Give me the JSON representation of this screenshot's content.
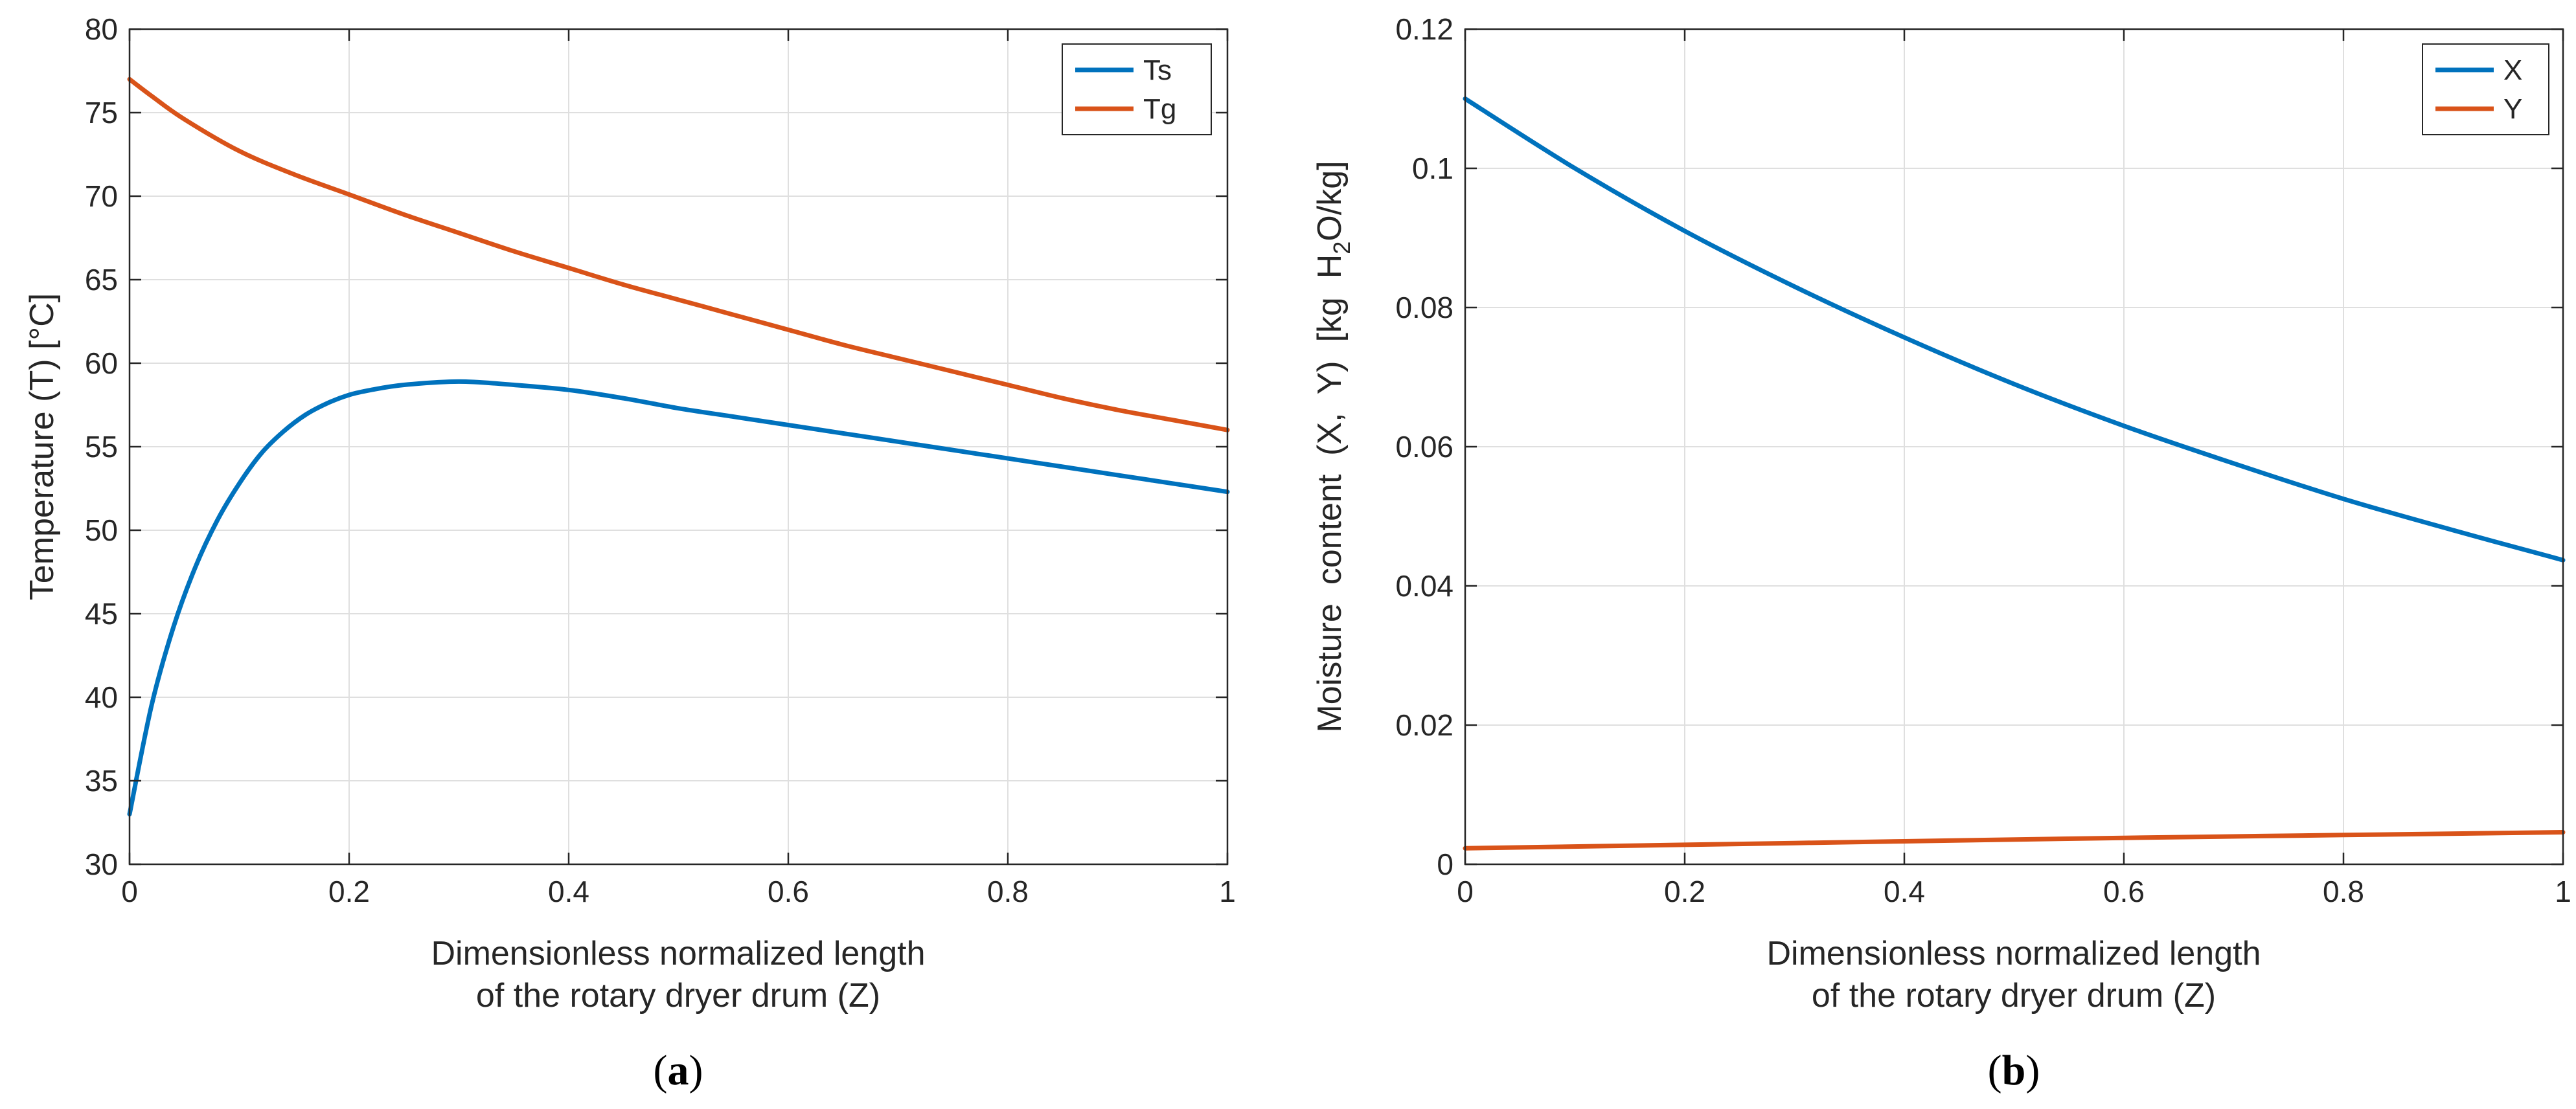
{
  "chart_data": [
    {
      "type": "line",
      "panel_label": "a",
      "xlabel_lines": [
        "Dimensionless normalized length",
        "of the rotary dryer drum (Z)"
      ],
      "ylabel": "Temperature (T) [°C]",
      "xlim": [
        0,
        1
      ],
      "ylim": [
        30,
        80
      ],
      "xticks": [
        0,
        0.2,
        0.4,
        0.6,
        0.8,
        1
      ],
      "xtick_labels": [
        "0",
        "0.2",
        "0.4",
        "0.6",
        "0.8",
        "1"
      ],
      "yticks": [
        30,
        35,
        40,
        45,
        50,
        55,
        60,
        65,
        70,
        75,
        80
      ],
      "ytick_labels": [
        "30",
        "35",
        "40",
        "45",
        "50",
        "55",
        "60",
        "65",
        "70",
        "75",
        "80"
      ],
      "grid": true,
      "legend_position": "top-right",
      "series": [
        {
          "name": "Ts",
          "color": "#0072BD",
          "x": [
            0,
            0.02,
            0.04,
            0.06,
            0.08,
            0.1,
            0.12,
            0.14,
            0.16,
            0.18,
            0.2,
            0.22,
            0.25,
            0.3,
            0.35,
            0.4,
            0.45,
            0.5,
            0.55,
            0.6,
            0.65,
            0.7,
            0.75,
            0.8,
            0.85,
            0.9,
            0.95,
            1
          ],
          "values": [
            33,
            39.5,
            44.2,
            47.8,
            50.6,
            52.8,
            54.6,
            55.9,
            56.9,
            57.6,
            58.1,
            58.4,
            58.7,
            58.9,
            58.7,
            58.4,
            57.9,
            57.3,
            56.8,
            56.3,
            55.8,
            55.3,
            54.8,
            54.3,
            53.8,
            53.3,
            52.8,
            52.3
          ]
        },
        {
          "name": "Tg",
          "color": "#D95319",
          "x": [
            0,
            0.02,
            0.05,
            0.1,
            0.15,
            0.2,
            0.25,
            0.3,
            0.35,
            0.4,
            0.45,
            0.5,
            0.55,
            0.6,
            0.65,
            0.7,
            0.75,
            0.8,
            0.85,
            0.9,
            0.95,
            1
          ],
          "values": [
            77,
            76,
            74.6,
            72.7,
            71.3,
            70.1,
            68.9,
            67.8,
            66.7,
            65.7,
            64.7,
            63.8,
            62.9,
            62,
            61.1,
            60.3,
            59.5,
            58.7,
            57.9,
            57.2,
            56.6,
            56
          ]
        }
      ]
    },
    {
      "type": "line",
      "panel_label": "b",
      "xlabel_lines": [
        "Dimensionless normalized length",
        "of the rotary dryer drum (Z)"
      ],
      "ylabel_parts": [
        "Moisture  content  (X,  Y)  [kg  H",
        "2",
        "O/kg]"
      ],
      "xlim": [
        0,
        1
      ],
      "ylim": [
        0,
        0.12
      ],
      "xticks": [
        0,
        0.2,
        0.4,
        0.6,
        0.8,
        1
      ],
      "xtick_labels": [
        "0",
        "0.2",
        "0.4",
        "0.6",
        "0.8",
        "1"
      ],
      "yticks": [
        0,
        0.02,
        0.04,
        0.06,
        0.08,
        0.1,
        0.12
      ],
      "ytick_labels": [
        "0",
        "0.02",
        "0.04",
        "0.06",
        "0.08",
        "0.1",
        "0.12"
      ],
      "grid": true,
      "legend_position": "top-right",
      "series": [
        {
          "name": "X",
          "color": "#0072BD",
          "x": [
            0,
            0.1,
            0.2,
            0.3,
            0.4,
            0.5,
            0.6,
            0.7,
            0.8,
            0.9,
            1
          ],
          "values": [
            0.11,
            0.1,
            0.091,
            0.083,
            0.0757,
            0.069,
            0.063,
            0.0576,
            0.0525,
            0.048,
            0.0437
          ]
        },
        {
          "name": "Y",
          "color": "#D95319",
          "x": [
            0,
            0.2,
            0.4,
            0.6,
            0.8,
            1
          ],
          "values": [
            0.0023,
            0.0028,
            0.0033,
            0.0038,
            0.0042,
            0.0046
          ]
        }
      ]
    }
  ]
}
